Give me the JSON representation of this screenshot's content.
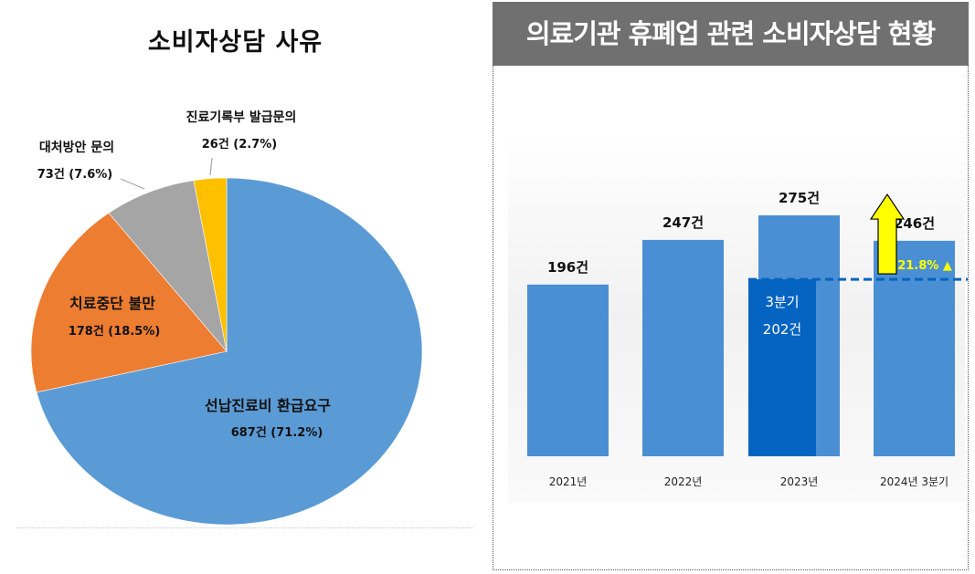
{
  "pie_title": "소비자상담 사유",
  "bar_title": "의료기관 휴폐업 관련 소비자상담 현황",
  "colors": {
    "blue": "#5b9bd5",
    "orange": "#ed7d31",
    "gray": "#a5a5a5",
    "yellow": "#ffc000",
    "dark_blue": "#0563c1",
    "bar_blue": "#4a8fd4",
    "arrow_yellow": "#ffff00",
    "pct_yellow": "#ffff00"
  },
  "chart_data": [
    {
      "type": "pie",
      "title": "소비자상담 사유",
      "slices": [
        {
          "name": "선납진료비 환급요구",
          "count": "687건",
          "pct": "(71.2%)",
          "value": 71.2,
          "color": "#5b9bd5"
        },
        {
          "name": "치료중단 불만",
          "count": "178건",
          "pct": "(18.5%)",
          "value": 18.5,
          "color": "#ed7d31"
        },
        {
          "name": "대처방안 문의",
          "count": "73건",
          "pct": "(7.6%)",
          "value": 7.6,
          "color": "#a5a5a5"
        },
        {
          "name": "진료기록부 발급문의",
          "count": "26건",
          "pct": "(2.7%)",
          "value": 2.7,
          "color": "#ffc000"
        }
      ]
    },
    {
      "type": "bar",
      "title": "의료기관 휴폐업 관련 소비자상담 현황",
      "categories": [
        "2021년",
        "2022년",
        "2023년",
        "2024년 3분기"
      ],
      "values": [
        196,
        247,
        275,
        246
      ],
      "value_labels": [
        "196건",
        "247건",
        "275건",
        "246건"
      ],
      "sub_bar": {
        "category_index": 2,
        "value": 202,
        "label_line1": "3분기",
        "label_line2": "202건"
      },
      "reference_value": 202,
      "growth_label": "21.8% ▲",
      "ylim": [
        0,
        300
      ]
    }
  ]
}
